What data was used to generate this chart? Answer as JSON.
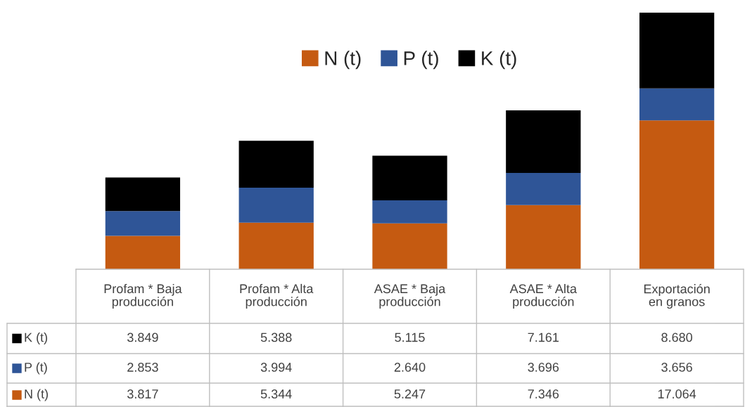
{
  "chart_data": {
    "type": "bar",
    "stacked": true,
    "legend": "top",
    "categories": [
      "Profam * Baja producción",
      "Profam * Alta producción",
      "ASAE * Baja producción",
      "ASAE * Alta producción",
      "Exportación en granos"
    ],
    "series": [
      {
        "name": "N (t)",
        "color": "#c55a11",
        "values": [
          3817,
          5344,
          5247,
          7346,
          17064
        ],
        "value_labels": [
          "3.817",
          "5.344",
          "5.247",
          "7.346",
          "17.064"
        ]
      },
      {
        "name": "P (t)",
        "color": "#2f5597",
        "values": [
          2853,
          3994,
          2640,
          3696,
          3656
        ],
        "value_labels": [
          "2.853",
          "3.994",
          "2.640",
          "3.696",
          "3.656"
        ]
      },
      {
        "name": "K (t)",
        "color": "#000000",
        "values": [
          3849,
          5388,
          5115,
          7161,
          8680
        ],
        "value_labels": [
          "3.849",
          "5.388",
          "5.115",
          "7.161",
          "8.680"
        ]
      }
    ]
  }
}
